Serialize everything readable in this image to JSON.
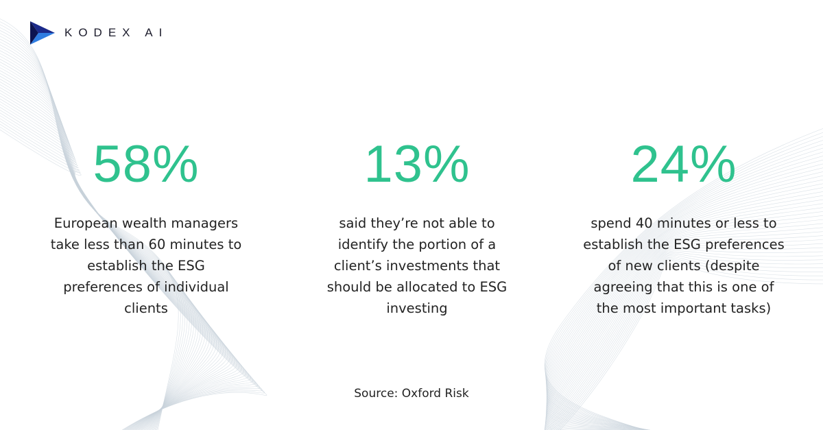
{
  "brand": {
    "name": "KODEX AI"
  },
  "stats": [
    {
      "value": "58%",
      "lines": [
        "European wealth managers",
        "take less than 60 minutes to",
        "establish the ESG",
        "preferences of individual",
        "clients"
      ]
    },
    {
      "value": "13%",
      "lines": [
        "said they’re not able to",
        "identify the portion of a",
        "client’s investments that",
        "should be allocated to ESG",
        "investing"
      ]
    },
    {
      "value": "24%",
      "lines": [
        "spend 40 minutes or less to",
        "establish the ESG preferences",
        "of new clients (despite",
        "agreeing that this is one of",
        "the most important tasks)"
      ]
    }
  ],
  "source": "Source: Oxford Risk"
}
